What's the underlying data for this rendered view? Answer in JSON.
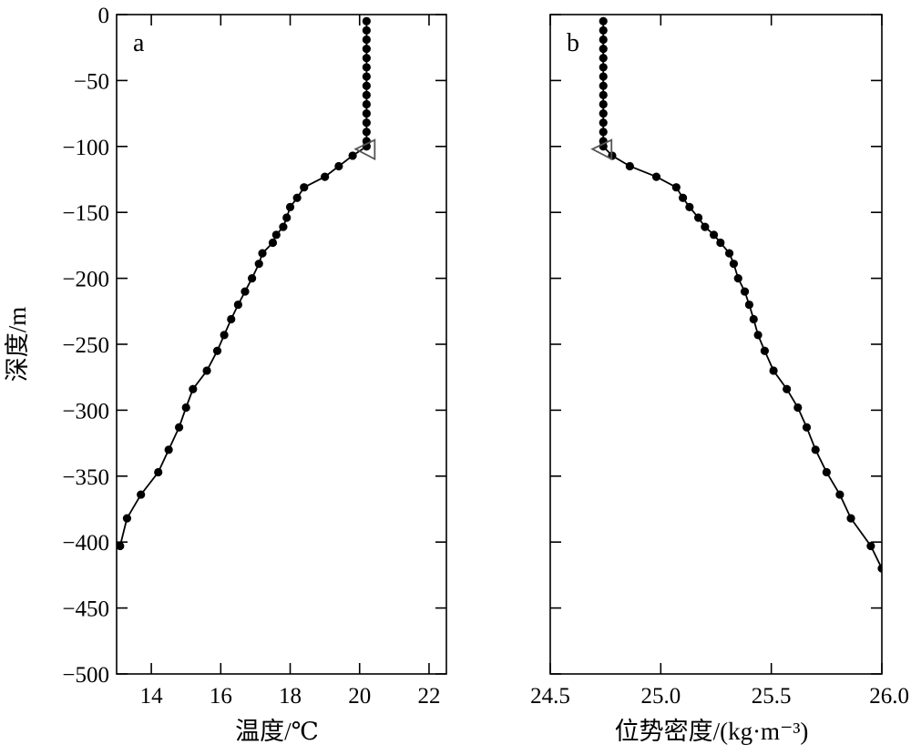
{
  "figure": {
    "ylabel": "深度/m"
  },
  "chart_data": [
    {
      "type": "scatter",
      "panel_label": "a",
      "xlabel": "温度/℃",
      "ylabel": "深度/m",
      "xlim": [
        13,
        22.5
      ],
      "ylim": [
        -500,
        0
      ],
      "xticks": [
        14,
        16,
        18,
        20,
        22
      ],
      "yticks": [
        0,
        -50,
        -100,
        -150,
        -200,
        -250,
        -300,
        -350,
        -400,
        -450,
        -500
      ],
      "grid": false,
      "series": [
        {
          "style": "line-with-dots",
          "x": [
            20.2,
            20.2,
            20.2,
            20.2,
            20.2,
            20.2,
            20.2,
            20.2,
            20.2,
            20.2,
            20.2,
            20.2,
            20.2,
            20.2,
            20.2,
            19.8,
            19.4,
            19.0,
            18.4,
            18.2,
            18.0,
            17.9,
            17.8,
            17.6,
            17.5,
            17.2,
            17.1,
            16.9,
            16.7,
            16.5,
            16.3,
            16.1,
            15.9,
            15.6,
            15.2,
            15.0,
            14.8,
            14.5,
            14.2,
            13.7,
            13.3,
            13.1
          ],
          "y": [
            -5,
            -12,
            -19,
            -26,
            -33,
            -40,
            -47,
            -54,
            -61,
            -68,
            -75,
            -82,
            -89,
            -96,
            -100,
            -107,
            -115,
            -123,
            -131,
            -139,
            -146,
            -154,
            -161,
            -167,
            -173,
            -181,
            -189,
            -200,
            -210,
            -220,
            -231,
            -243,
            -255,
            -270,
            -284,
            -298,
            -313,
            -330,
            -347,
            -364,
            -382,
            -403
          ]
        }
      ],
      "annotations": [
        {
          "marker": "open-triangle",
          "x": 20.2,
          "y": -102
        }
      ]
    },
    {
      "type": "scatter",
      "panel_label": "b",
      "xlabel": "位势密度/(kg·m⁻³)",
      "ylabel": "",
      "xlim": [
        24.5,
        26.0
      ],
      "ylim": [
        -500,
        0
      ],
      "xticks": [
        24.5,
        25.0,
        25.5,
        26.0
      ],
      "xtick_labels": [
        "24.5",
        "25.0",
        "25.5",
        "26.0"
      ],
      "yticks": [
        0,
        -50,
        -100,
        -150,
        -200,
        -250,
        -300,
        -350,
        -400,
        -450,
        -500
      ],
      "grid": false,
      "series": [
        {
          "style": "line-with-dots",
          "x": [
            24.74,
            24.74,
            24.74,
            24.74,
            24.74,
            24.74,
            24.74,
            24.74,
            24.74,
            24.74,
            24.74,
            24.74,
            24.74,
            24.74,
            24.74,
            24.78,
            24.86,
            24.98,
            25.07,
            25.1,
            25.13,
            25.17,
            25.2,
            25.24,
            25.27,
            25.31,
            25.33,
            25.35,
            25.38,
            25.4,
            25.42,
            25.44,
            25.47,
            25.51,
            25.57,
            25.62,
            25.66,
            25.7,
            25.75,
            25.81,
            25.86,
            25.95,
            26.0
          ],
          "y": [
            -5,
            -12,
            -19,
            -26,
            -33,
            -40,
            -47,
            -54,
            -61,
            -68,
            -75,
            -82,
            -89,
            -96,
            -100,
            -107,
            -115,
            -123,
            -131,
            -139,
            -146,
            -154,
            -161,
            -167,
            -173,
            -181,
            -189,
            -200,
            -210,
            -220,
            -231,
            -243,
            -255,
            -270,
            -284,
            -298,
            -313,
            -330,
            -347,
            -364,
            -382,
            -403,
            -420
          ]
        }
      ],
      "annotations": [
        {
          "marker": "open-triangle",
          "x": 24.74,
          "y": -102
        }
      ]
    }
  ]
}
